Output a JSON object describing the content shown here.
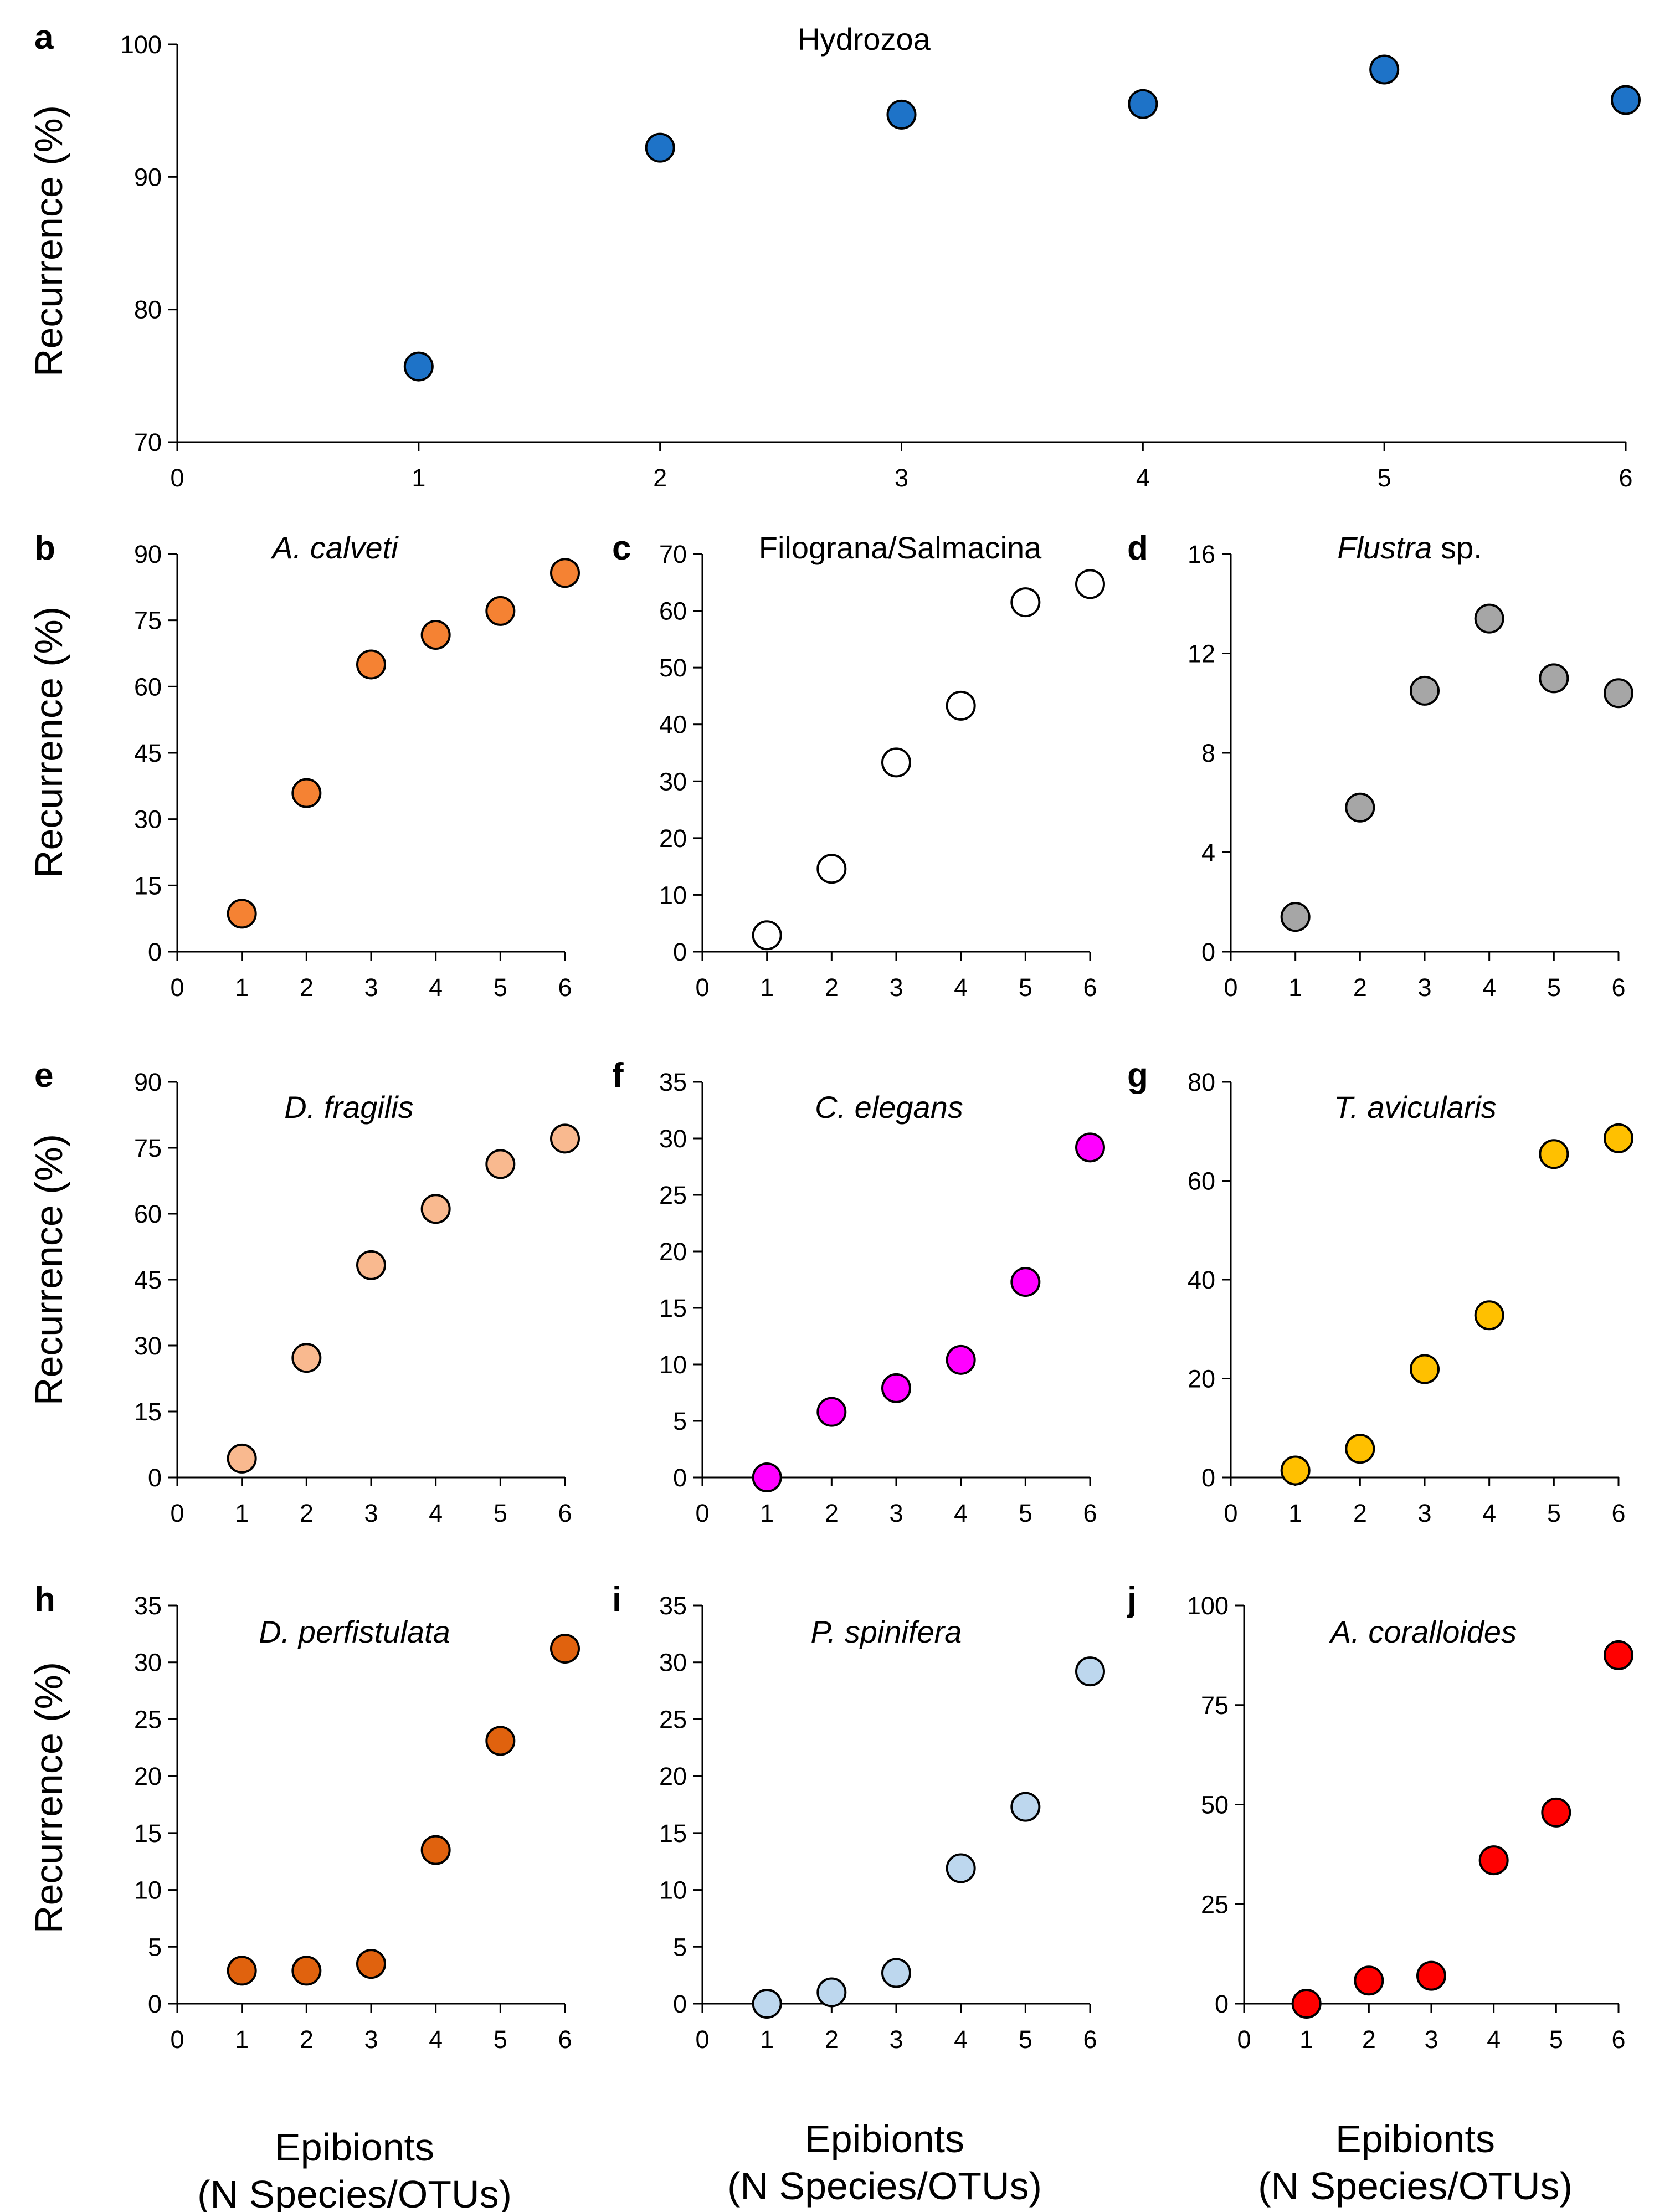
{
  "figure": {
    "ylabel": "Recurrence (%)",
    "xlabel_line1": "Epibionts",
    "xlabel_line2": "(N Species/OTUs)"
  },
  "chart_data": [
    {
      "panel": "a",
      "type": "scatter",
      "title": "Hydrozoa",
      "title_italic": false,
      "ylabel": "Recurrence (%)",
      "xlabel": "Epibionts (N Species/OTUs)",
      "xlim": [
        0,
        6
      ],
      "ylim": [
        70,
        100
      ],
      "xticks": [
        0,
        1,
        2,
        3,
        4,
        5,
        6
      ],
      "yticks": [
        70,
        80,
        90,
        100
      ],
      "x": [
        1,
        2,
        3,
        4,
        5,
        6
      ],
      "y": [
        75.7,
        92.2,
        94.7,
        95.5,
        98.1,
        95.8
      ],
      "color": "#1e73c8"
    },
    {
      "panel": "b",
      "type": "scatter",
      "title": "A. calveti",
      "title_italic": true,
      "ylabel": "Recurrence (%)",
      "xlabel": "Epibionts (N Species/OTUs)",
      "xlim": [
        0,
        6
      ],
      "ylim": [
        0,
        90
      ],
      "xticks": [
        0,
        1,
        2,
        3,
        4,
        5,
        6
      ],
      "yticks": [
        0,
        15,
        30,
        45,
        60,
        75,
        90
      ],
      "x": [
        1,
        2,
        3,
        4,
        5,
        6
      ],
      "y": [
        8.6,
        35.9,
        65.0,
        71.7,
        77.1,
        85.7
      ],
      "color": "#f58233"
    },
    {
      "panel": "c",
      "type": "scatter",
      "title": "Filograna/Salmacina",
      "title_italic": false,
      "ylabel": "Recurrence (%)",
      "xlabel": "Epibionts (N Species/OTUs)",
      "xlim": [
        0,
        6
      ],
      "ylim": [
        0,
        70
      ],
      "xticks": [
        0,
        1,
        2,
        3,
        4,
        5,
        6
      ],
      "yticks": [
        0,
        10,
        20,
        30,
        40,
        50,
        60,
        70
      ],
      "x": [
        1,
        2,
        3,
        4,
        5,
        6
      ],
      "y": [
        2.9,
        14.6,
        33.3,
        43.3,
        61.5,
        64.7
      ],
      "color": "#ffffff"
    },
    {
      "panel": "d",
      "type": "scatter",
      "title": "Flustra",
      "title_suffix": " sp.",
      "title_italic": true,
      "ylabel": "Recurrence (%)",
      "xlabel": "Epibionts (N Species/OTUs)",
      "xlim": [
        0,
        6
      ],
      "ylim": [
        0,
        16
      ],
      "xticks": [
        0,
        1,
        2,
        3,
        4,
        5,
        6
      ],
      "yticks": [
        0,
        4,
        8,
        12,
        16
      ],
      "x": [
        1,
        2,
        3,
        4,
        5,
        6
      ],
      "y": [
        1.4,
        5.8,
        10.5,
        13.4,
        11.0,
        10.4
      ],
      "color": "#a6a6a6"
    },
    {
      "panel": "e",
      "type": "scatter",
      "title": "D. fragilis",
      "title_italic": true,
      "ylabel": "Recurrence (%)",
      "xlabel": "Epibionts (N Species/OTUs)",
      "xlim": [
        0,
        6
      ],
      "ylim": [
        0,
        90
      ],
      "xticks": [
        0,
        1,
        2,
        3,
        4,
        5,
        6
      ],
      "yticks": [
        0,
        15,
        30,
        45,
        60,
        75,
        90
      ],
      "x": [
        1,
        2,
        3,
        4,
        5,
        6
      ],
      "y": [
        4.3,
        27.2,
        48.3,
        61.1,
        71.3,
        77.1
      ],
      "color": "#f9b98f"
    },
    {
      "panel": "f",
      "type": "scatter",
      "title": "C. elegans",
      "title_italic": true,
      "ylabel": "Recurrence (%)",
      "xlabel": "Epibionts (N Species/OTUs)",
      "xlim": [
        0,
        6
      ],
      "ylim": [
        0,
        35
      ],
      "xticks": [
        0,
        1,
        2,
        3,
        4,
        5,
        6
      ],
      "yticks": [
        0,
        5,
        10,
        15,
        20,
        25,
        30,
        35
      ],
      "x": [
        1,
        2,
        3,
        4,
        5,
        6
      ],
      "y": [
        0.0,
        5.8,
        7.9,
        10.4,
        17.3,
        29.2
      ],
      "color": "#ff00ff"
    },
    {
      "panel": "g",
      "type": "scatter",
      "title": "T. avicularis",
      "title_italic": true,
      "ylabel": "Recurrence (%)",
      "xlabel": "Epibionts (N Species/OTUs)",
      "xlim": [
        0,
        6
      ],
      "ylim": [
        0,
        80
      ],
      "xticks": [
        0,
        1,
        2,
        3,
        4,
        5,
        6
      ],
      "yticks": [
        0,
        20,
        40,
        60,
        80
      ],
      "x": [
        1,
        2,
        3,
        4,
        5,
        6
      ],
      "y": [
        1.4,
        5.8,
        21.9,
        32.8,
        65.4,
        68.6
      ],
      "color": "#ffc000"
    },
    {
      "panel": "h",
      "type": "scatter",
      "title": "D. perfistulata",
      "title_italic": true,
      "ylabel": "Recurrence (%)",
      "xlabel": "Epibionts (N Species/OTUs)",
      "xlim": [
        0,
        6
      ],
      "ylim": [
        0,
        35
      ],
      "xticks": [
        0,
        1,
        2,
        3,
        4,
        5,
        6
      ],
      "yticks": [
        0,
        5,
        10,
        15,
        20,
        25,
        30,
        35
      ],
      "x": [
        1,
        2,
        3,
        4,
        5,
        6
      ],
      "y": [
        2.9,
        2.9,
        3.5,
        13.5,
        23.1,
        31.2
      ],
      "color": "#e0620e"
    },
    {
      "panel": "i",
      "type": "scatter",
      "title": "P. spinifera",
      "title_italic": true,
      "ylabel": "Recurrence (%)",
      "xlabel": "Epibionts (N Species/OTUs)",
      "xlim": [
        0,
        6
      ],
      "ylim": [
        0,
        35
      ],
      "xticks": [
        0,
        1,
        2,
        3,
        4,
        5,
        6
      ],
      "yticks": [
        0,
        5,
        10,
        15,
        20,
        25,
        30,
        35
      ],
      "x": [
        1,
        2,
        3,
        4,
        5,
        6
      ],
      "y": [
        0.0,
        1.0,
        2.7,
        11.9,
        17.3,
        29.2
      ],
      "color": "#bdd7ee"
    },
    {
      "panel": "j",
      "type": "scatter",
      "title": "A. coralloides",
      "title_italic": true,
      "ylabel": "Recurrence (%)",
      "xlabel": "Epibionts (N Species/OTUs)",
      "xlim": [
        0,
        6
      ],
      "ylim": [
        0,
        100
      ],
      "xticks": [
        0,
        1,
        2,
        3,
        4,
        5,
        6
      ],
      "yticks": [
        0,
        25,
        50,
        75,
        100
      ],
      "x": [
        1,
        2,
        3,
        4,
        5,
        6
      ],
      "y": [
        0.0,
        5.8,
        7.0,
        36.0,
        48.0,
        87.5
      ],
      "color": "#ff0000"
    }
  ]
}
